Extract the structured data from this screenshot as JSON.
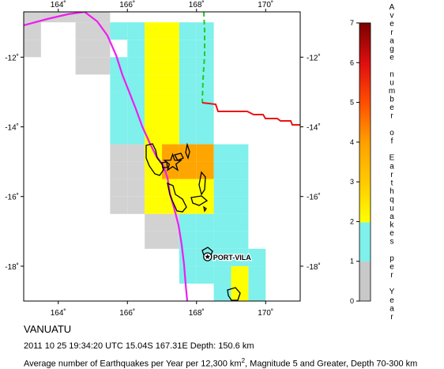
{
  "map": {
    "title": "VANUATU",
    "event_line": "2011 10 25 19:34:20 UTC 15.04S 167.31E Depth: 150.6 km",
    "desc_prefix": "Average number of Earthquakes per Year per 12,300 km",
    "desc_sup": "2",
    "desc_suffix": ", Magnitude 5 and Greater, Depth 70-300 km",
    "place_label": "PORT-VILA",
    "x_ticks": [
      "164˚",
      "166˚",
      "168˚",
      "170˚"
    ],
    "y_ticks": [
      "-12˚",
      "-14˚",
      "-16˚",
      "-18˚"
    ],
    "epicenter": {
      "lat": -15.04,
      "lon": 167.31
    },
    "place": {
      "name": "PORT-VILA",
      "lat": -17.73,
      "lon": 168.32
    },
    "extent": {
      "lon_min": 163.0,
      "lon_max": 171.0,
      "lat_min": -19.0,
      "lat_max": -10.7
    }
  },
  "legend": {
    "title": "Average number of Earthquakes per Year",
    "tick_labels": [
      "0",
      "1",
      "2",
      "3",
      "4",
      "5",
      "6",
      "7"
    ],
    "colors": [
      "#d2d2d2",
      "#7ff0eb",
      "#ffff00",
      "#ffa500",
      "#ff5a00",
      "#e0180f",
      "#a80000",
      "#7a0000"
    ]
  },
  "grid_cells": [
    {
      "lon": 163.0,
      "lat": -11.0,
      "v": 0.05
    },
    {
      "lon": 163.0,
      "lat": -11.5,
      "v": 0.1
    },
    {
      "lon": 163.0,
      "lat": -12.0,
      "v": 0.1
    },
    {
      "lon": 163.5,
      "lat": -11.0,
      "v": 0.05
    },
    {
      "lon": 164.0,
      "lat": -11.0,
      "v": 0.05
    },
    {
      "lon": 164.5,
      "lat": -11.0,
      "v": 0.05
    },
    {
      "lon": 164.5,
      "lat": -10.7,
      "v": 0.9
    },
    {
      "lon": 165.0,
      "lat": -11.0,
      "v": 0.05
    },
    {
      "lon": 165.0,
      "lat": -10.7,
      "v": 0.9
    },
    {
      "lon": 164.5,
      "lat": -12.5,
      "v": 0.1
    },
    {
      "lon": 164.5,
      "lat": -12.0,
      "v": 0.1
    },
    {
      "lon": 164.5,
      "lat": -11.5,
      "v": 0.1
    },
    {
      "lon": 165.0,
      "lat": -12.5,
      "v": 0.1
    },
    {
      "lon": 165.0,
      "lat": -12.0,
      "v": 0.1
    },
    {
      "lon": 165.0,
      "lat": -11.5,
      "v": 0.1
    },
    {
      "lon": 165.5,
      "lat": -10.7,
      "v": 0.9
    },
    {
      "lon": 165.5,
      "lat": -11.5,
      "v": 0.9
    },
    {
      "lon": 165.5,
      "lat": -12.5,
      "v": 0.9
    },
    {
      "lon": 165.5,
      "lat": -13.0,
      "v": 0.9
    },
    {
      "lon": 165.5,
      "lat": -13.5,
      "v": 0.9
    },
    {
      "lon": 165.5,
      "lat": -14.0,
      "v": 0.7
    },
    {
      "lon": 165.5,
      "lat": -14.5,
      "v": 0.5
    },
    {
      "lon": 165.5,
      "lat": -15.5,
      "v": 0.1
    },
    {
      "lon": 165.5,
      "lat": -16.0,
      "v": 0.1
    },
    {
      "lon": 165.5,
      "lat": -16.5,
      "v": 0.1
    },
    {
      "lon": 166.0,
      "lat": -10.7,
      "v": 0.9
    },
    {
      "lon": 166.0,
      "lat": -11.5,
      "v": 0.9
    },
    {
      "lon": 166.0,
      "lat": -12.0,
      "v": 0.9
    },
    {
      "lon": 166.0,
      "lat": -12.5,
      "v": 0.9
    },
    {
      "lon": 166.0,
      "lat": -13.0,
      "v": 0.9
    },
    {
      "lon": 166.0,
      "lat": -13.5,
      "v": 0.9
    },
    {
      "lon": 166.0,
      "lat": -14.0,
      "v": 0.7
    },
    {
      "lon": 166.0,
      "lat": -14.5,
      "v": 0.5
    },
    {
      "lon": 165.5,
      "lat": -15.0,
      "v": 0.1
    },
    {
      "lon": 166.0,
      "lat": -15.0,
      "v": 0.1
    },
    {
      "lon": 166.0,
      "lat": -15.5,
      "v": 0.1
    },
    {
      "lon": 166.0,
      "lat": -16.0,
      "v": 0.1
    },
    {
      "lon": 166.0,
      "lat": -16.5,
      "v": 0.1
    },
    {
      "lon": 166.5,
      "lat": -11.5,
      "v": 1.5
    },
    {
      "lon": 166.5,
      "lat": -12.0,
      "v": 1.5
    },
    {
      "lon": 166.5,
      "lat": -12.5,
      "v": 1.5
    },
    {
      "lon": 166.5,
      "lat": -13.0,
      "v": 1.5
    },
    {
      "lon": 166.5,
      "lat": -13.5,
      "v": 1.5
    },
    {
      "lon": 166.5,
      "lat": -14.0,
      "v": 1.5
    },
    {
      "lon": 166.5,
      "lat": -14.5,
      "v": 1.5
    },
    {
      "lon": 167.0,
      "lat": -11.5,
      "v": 1.5
    },
    {
      "lon": 167.0,
      "lat": -12.0,
      "v": 1.5
    },
    {
      "lon": 167.0,
      "lat": -12.5,
      "v": 1.5
    },
    {
      "lon": 167.0,
      "lat": -13.0,
      "v": 1.5
    },
    {
      "lon": 167.0,
      "lat": -13.5,
      "v": 1.5
    },
    {
      "lon": 167.0,
      "lat": -14.0,
      "v": 1.5
    },
    {
      "lon": 167.0,
      "lat": -14.5,
      "v": 1.5
    },
    {
      "lon": 167.5,
      "lat": -10.7,
      "v": 0.7
    },
    {
      "lon": 167.5,
      "lat": -11.5,
      "v": 0.5
    },
    {
      "lon": 167.5,
      "lat": -12.0,
      "v": 0.9
    },
    {
      "lon": 167.5,
      "lat": -12.5,
      "v": 0.9
    },
    {
      "lon": 167.5,
      "lat": -13.0,
      "v": 0.9
    },
    {
      "lon": 167.5,
      "lat": -13.5,
      "v": 0.9
    },
    {
      "lon": 167.5,
      "lat": -14.0,
      "v": 0.9
    },
    {
      "lon": 167.5,
      "lat": -14.5,
      "v": 0.9
    },
    {
      "lon": 168.0,
      "lat": -11.5,
      "v": 0.5
    },
    {
      "lon": 168.0,
      "lat": -12.0,
      "v": 0.5
    },
    {
      "lon": 168.0,
      "lat": -12.5,
      "v": 0.9
    },
    {
      "lon": 168.0,
      "lat": -13.0,
      "v": 0.9
    },
    {
      "lon": 168.0,
      "lat": -13.5,
      "v": 0.9
    },
    {
      "lon": 168.0,
      "lat": -14.0,
      "v": 0.9
    },
    {
      "lon": 168.0,
      "lat": -14.5,
      "v": 0.9
    },
    {
      "lon": 166.5,
      "lat": -15.0,
      "v": 1.5
    },
    {
      "lon": 166.5,
      "lat": -15.5,
      "v": 1.5
    },
    {
      "lon": 167.0,
      "lat": -15.0,
      "v": 3.2
    },
    {
      "lon": 167.5,
      "lat": -15.0,
      "v": 3.2
    },
    {
      "lon": 168.0,
      "lat": -15.0,
      "v": 3.2
    },
    {
      "lon": 167.0,
      "lat": -15.5,
      "v": 3.2
    },
    {
      "lon": 167.5,
      "lat": -15.5,
      "v": 3.2
    },
    {
      "lon": 168.0,
      "lat": -15.5,
      "v": 3.2
    },
    {
      "lon": 168.5,
      "lat": -15.0,
      "v": 0.5
    },
    {
      "lon": 168.5,
      "lat": -15.5,
      "v": 0.5
    },
    {
      "lon": 169.0,
      "lat": -15.0,
      "v": 0.5
    },
    {
      "lon": 169.0,
      "lat": -15.5,
      "v": 0.5
    },
    {
      "lon": 166.5,
      "lat": -16.0,
      "v": 1.5
    },
    {
      "lon": 166.5,
      "lat": -16.5,
      "v": 1.5
    },
    {
      "lon": 167.0,
      "lat": -16.0,
      "v": 1.5
    },
    {
      "lon": 167.0,
      "lat": -16.5,
      "v": 1.5
    },
    {
      "lon": 167.5,
      "lat": -16.0,
      "v": 1.5
    },
    {
      "lon": 167.5,
      "lat": -16.5,
      "v": 1.5
    },
    {
      "lon": 168.0,
      "lat": -16.0,
      "v": 1.5
    },
    {
      "lon": 168.0,
      "lat": -16.5,
      "v": 1.5
    },
    {
      "lon": 168.5,
      "lat": -16.0,
      "v": 0.7
    },
    {
      "lon": 168.5,
      "lat": -16.5,
      "v": 0.7
    },
    {
      "lon": 169.0,
      "lat": -16.0,
      "v": 0.7
    },
    {
      "lon": 169.0,
      "lat": -16.5,
      "v": 0.7
    },
    {
      "lon": 166.5,
      "lat": -17.0,
      "v": 0.1
    },
    {
      "lon": 166.5,
      "lat": -17.5,
      "v": 0.1
    },
    {
      "lon": 167.0,
      "lat": -17.0,
      "v": 0.1
    },
    {
      "lon": 167.0,
      "lat": -17.5,
      "v": 0.1
    },
    {
      "lon": 167.5,
      "lat": -17.0,
      "v": 0.9
    },
    {
      "lon": 167.5,
      "lat": -17.5,
      "v": 0.9
    },
    {
      "lon": 168.0,
      "lat": -17.0,
      "v": 0.9
    },
    {
      "lon": 168.0,
      "lat": -17.5,
      "v": 0.9
    },
    {
      "lon": 168.5,
      "lat": -17.0,
      "v": 0.7
    },
    {
      "lon": 168.5,
      "lat": -17.5,
      "v": 0.7
    },
    {
      "lon": 169.0,
      "lat": -17.0,
      "v": 0.7
    },
    {
      "lon": 169.0,
      "lat": -17.5,
      "v": 0.7
    },
    {
      "lon": 167.5,
      "lat": -18.0,
      "v": 0.7
    },
    {
      "lon": 167.5,
      "lat": -18.5,
      "v": 0.7
    },
    {
      "lon": 168.0,
      "lat": -18.0,
      "v": 0.5
    },
    {
      "lon": 168.0,
      "lat": -18.5,
      "v": 0.5
    },
    {
      "lon": 168.5,
      "lat": -18.0,
      "v": 0.9
    },
    {
      "lon": 168.5,
      "lat": -18.5,
      "v": 0.9
    },
    {
      "lon": 169.0,
      "lat": -18.0,
      "v": 0.7
    },
    {
      "lon": 169.5,
      "lat": -18.0,
      "v": 0.5
    },
    {
      "lon": 169.5,
      "lat": -18.5,
      "v": 0.5
    },
    {
      "lon": 169.0,
      "lat": -18.5,
      "v": 1.5
    },
    {
      "lon": 169.0,
      "lat": -19.0,
      "v": 1.5
    },
    {
      "lon": 168.5,
      "lat": -19.0,
      "v": 0.9
    },
    {
      "lon": 169.5,
      "lat": -19.0,
      "v": 0.9
    }
  ]
}
